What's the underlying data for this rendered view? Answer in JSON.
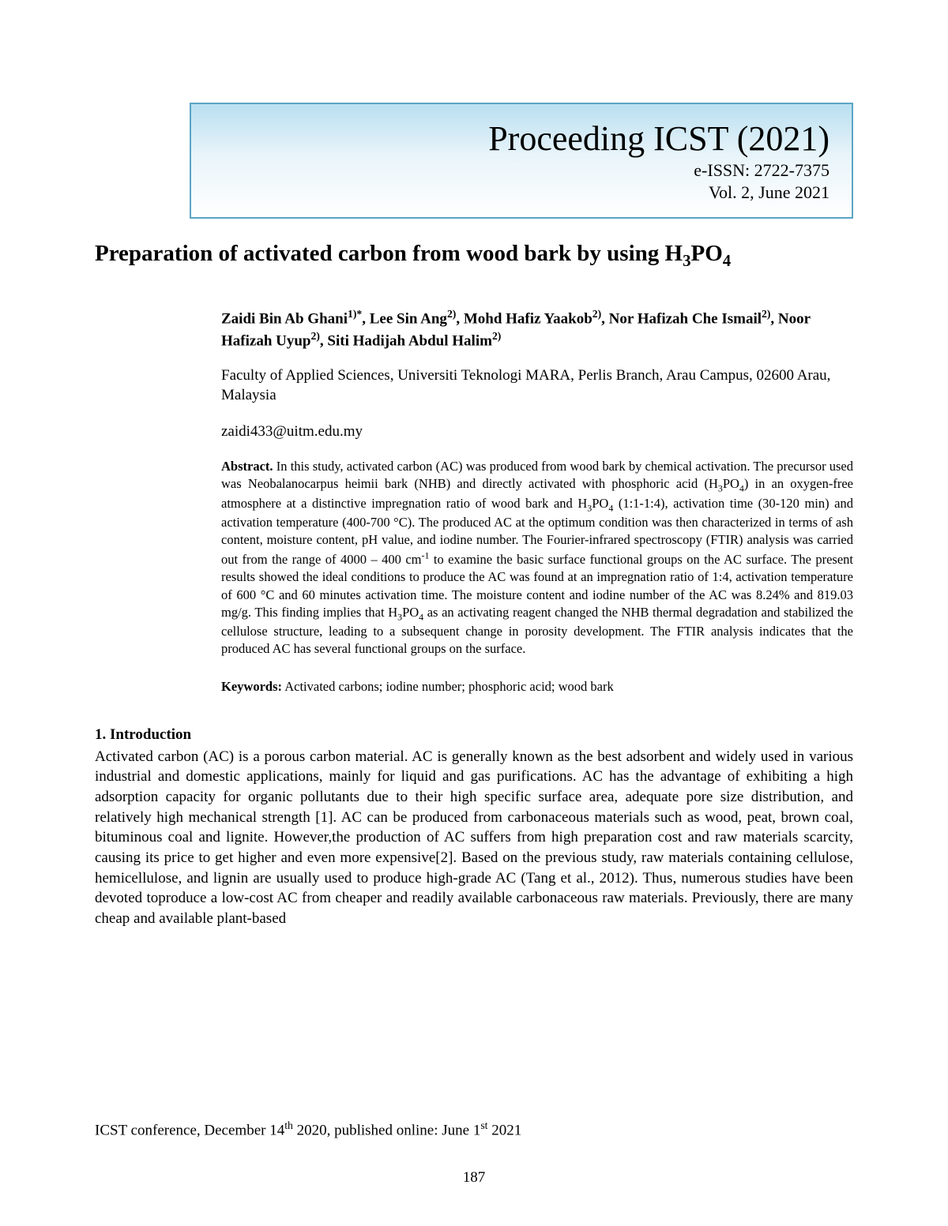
{
  "banner": {
    "title": "Proceeding ICST (2021)",
    "issn": "e-ISSN: 2722-7375",
    "vol": "Vol. 2, June 2021"
  },
  "paper": {
    "title_html": "Preparation of activated carbon from wood bark by using H<sub>3</sub>PO<sub>4</sub>",
    "authors_html": "Zaidi Bin Ab Ghani<sup>1)*</sup>, Lee Sin Ang<sup>2)</sup>, Mohd Hafiz Yaakob<sup>2)</sup>, Nor Hafizah Che Ismail<sup>2)</sup>, Noor Hafizah Uyup<sup>2)</sup>, Siti Hadijah Abdul Halim<sup>2)</sup>",
    "affiliation": "Faculty of Applied Sciences, Universiti Teknologi MARA, Perlis Branch, Arau Campus, 02600 Arau, Malaysia",
    "email": "zaidi433@uitm.edu.my"
  },
  "abstract": {
    "label": "Abstract.",
    "text_html": "In this study, activated carbon (AC) was produced from wood bark by chemical activation. The precursor used was Neobalanocarpus heimii bark (NHB) and directly activated with phosphoric acid (H<sub>3</sub>PO<sub>4</sub>) in an oxygen-free atmosphere at a distinctive impregnation ratio of wood bark and H<sub>3</sub>PO<sub>4</sub> (1:1-1:4), activation time (30-120 min) and activation temperature (400-700 °C). The produced AC at the optimum condition was then characterized in terms of ash content, moisture content, pH value, and iodine number. The Fourier-infrared spectroscopy (FTIR) analysis was carried out from the range of 4000 – 400 cm<sup>-1</sup> to examine the basic surface functional groups on the AC surface. The present results showed the ideal conditions to produce the AC was found at an impregnation ratio of 1:4, activation temperature of 600 °C and 60 minutes activation time. The moisture content and iodine number of the AC was 8.24% and 819.03 mg/g. This finding implies that H<sub>3</sub>PO<sub>4</sub> as an activating reagent changed the NHB thermal degradation and stabilized the cellulose structure, leading to a subsequent change in porosity development. The FTIR analysis indicates that the produced AC has several functional groups on the surface."
  },
  "keywords": {
    "label": "Keywords:",
    "text": "Activated carbons; iodine number; phosphoric acid; wood bark"
  },
  "section1": {
    "heading": "1. Introduction",
    "body": "Activated carbon (AC) is a porous carbon material. AC is generally known as the best adsorbent and widely used in various industrial and domestic applications, mainly for liquid and gas purifications. AC has the advantage of exhibiting a high adsorption capacity for organic pollutants due to their high specific surface area, adequate pore size distribution, and relatively high mechanical strength [1]. AC can be produced from carbonaceous materials such as wood, peat, brown coal, bituminous coal and lignite. However,the production of AC suffers from high preparation cost and raw materials scarcity, causing its price to get higher and even more expensive[2]. Based on the previous study, raw materials containing cellulose, hemicellulose, and lignin are usually used to produce high-grade AC (Tang et al., 2012). Thus, numerous studies have been devoted toproduce a low-cost AC from cheaper and readily available carbonaceous raw materials. Previously, there are many cheap and available plant-based"
  },
  "footer": {
    "line_html": "ICST conference, December 14<sup>th</sup> 2020, published online: June 1<sup>st</sup> 2021",
    "page": "187"
  }
}
